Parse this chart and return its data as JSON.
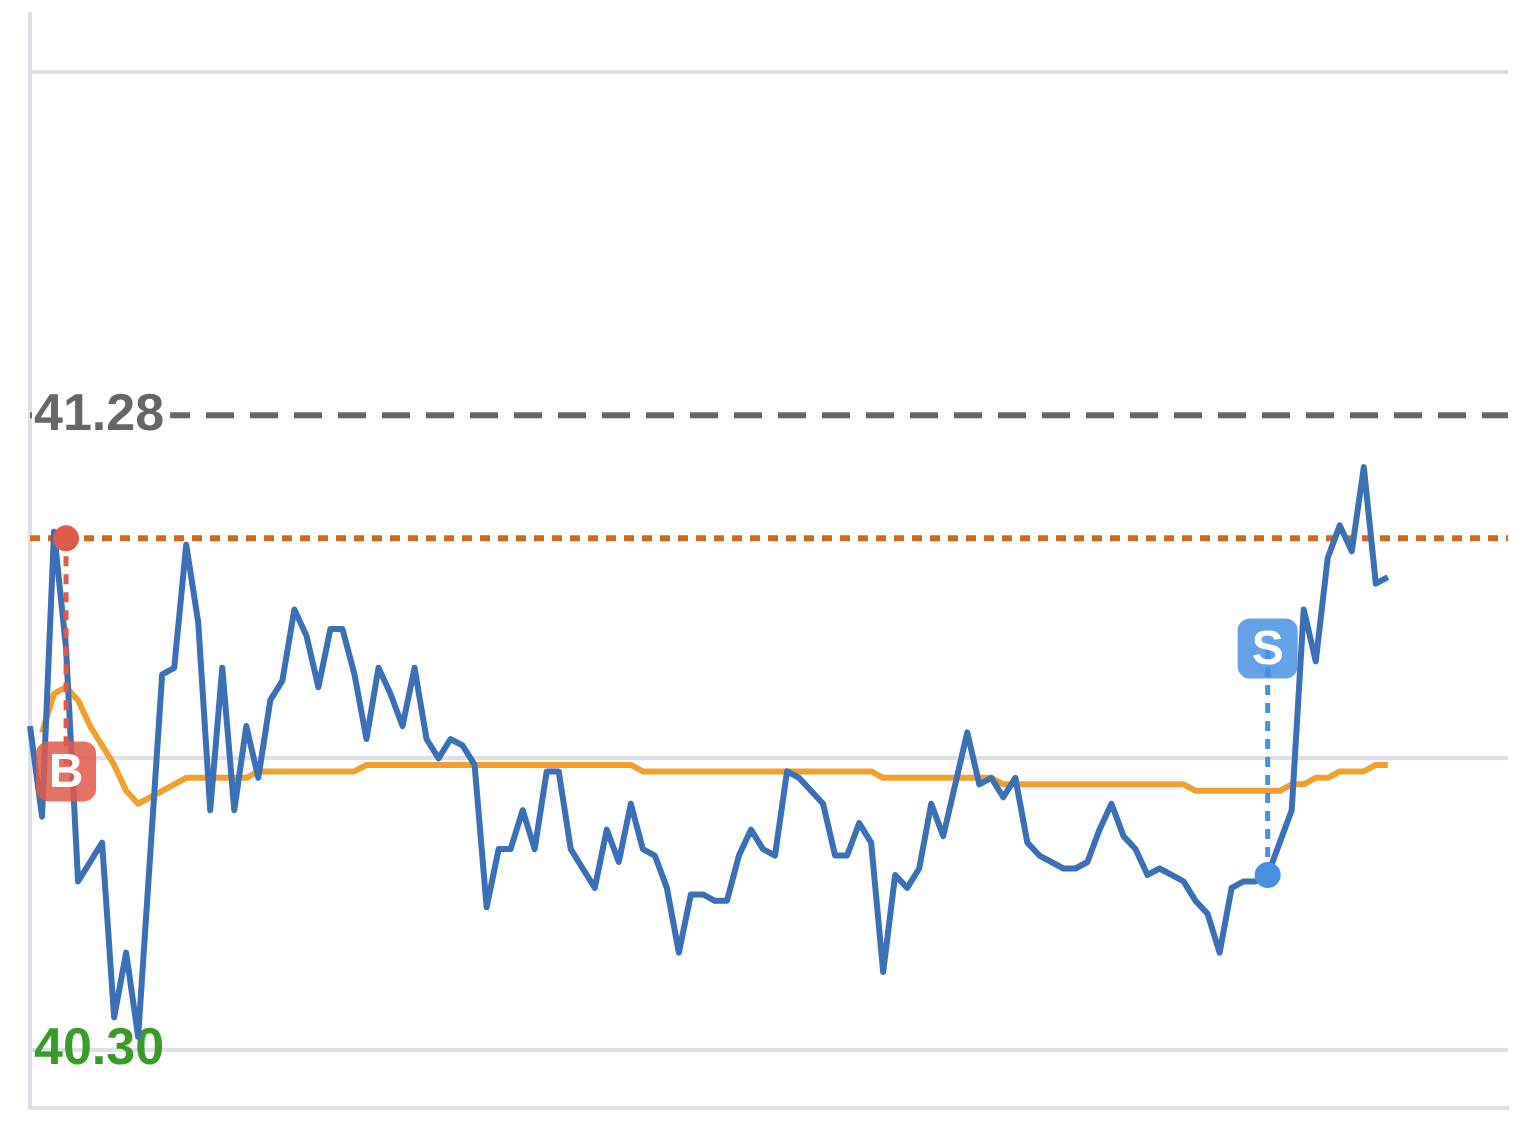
{
  "chart_data": {
    "type": "line",
    "categories": [
      null,
      null,
      null,
      null,
      null,
      null,
      null,
      null,
      null,
      null,
      null,
      null,
      null,
      null,
      null,
      null,
      null,
      null,
      null,
      null,
      null,
      null,
      null,
      null,
      null,
      null,
      null,
      null,
      null,
      null,
      null,
      null,
      null,
      null,
      null,
      null,
      null,
      null,
      null,
      null,
      null,
      null,
      null,
      null,
      null,
      null,
      null,
      null,
      null,
      null,
      null,
      null,
      null,
      null,
      null,
      null,
      null,
      null,
      null,
      null,
      null,
      null,
      null,
      null,
      null,
      null,
      null,
      null,
      null,
      null,
      null,
      null,
      null,
      null,
      null,
      null,
      null,
      null,
      null,
      null,
      null,
      null,
      null,
      null,
      null,
      null,
      null,
      null,
      null,
      null,
      null,
      null,
      null,
      null,
      null,
      null,
      null,
      null,
      null,
      null,
      null,
      null,
      null,
      null,
      null,
      null,
      null,
      null,
      null,
      null,
      null,
      null,
      null,
      null,
      null,
      null,
      null,
      null,
      null,
      null,
      null,
      null,
      null,
      null
    ],
    "ylim": [
      40.21,
      41.9
    ],
    "yticks": [
      {
        "value": 40.3,
        "label": "40.30"
      },
      {
        "value": 40.75,
        "label": null
      },
      {
        "value": 41.28,
        "label": "41.28"
      },
      {
        "value": 41.81,
        "label": null
      }
    ],
    "grid": true,
    "tick_labels": "y",
    "marker": "none",
    "series": [
      {
        "color": "#3b6fb6",
        "values": [
          40.8,
          40.66,
          41.1,
          40.92,
          40.56,
          40.59,
          40.62,
          40.35,
          40.45,
          40.32,
          40.6,
          40.88,
          40.89,
          41.08,
          40.96,
          40.67,
          40.89,
          40.67,
          40.8,
          40.72,
          40.84,
          40.87,
          40.98,
          40.94,
          40.86,
          40.95,
          40.95,
          40.88,
          40.78,
          40.89,
          40.85,
          40.8,
          40.89,
          40.78,
          40.75,
          40.78,
          40.77,
          40.74,
          40.52,
          40.61,
          40.61,
          40.67,
          40.61,
          40.73,
          40.73,
          40.61,
          40.58,
          40.55,
          40.64,
          40.59,
          40.68,
          40.61,
          40.6,
          40.55,
          40.45,
          40.54,
          40.54,
          40.53,
          40.53,
          40.6,
          40.64,
          40.61,
          40.6,
          40.73,
          40.72,
          40.7,
          40.68,
          40.6,
          40.6,
          40.65,
          40.62,
          40.42,
          40.57,
          40.55,
          40.58,
          40.68,
          40.63,
          40.71,
          40.79,
          40.71,
          40.72,
          40.69,
          40.72,
          40.62,
          40.6,
          40.59,
          40.58,
          40.58,
          40.59,
          40.64,
          40.68,
          40.63,
          40.61,
          40.57,
          40.58,
          40.57,
          40.56,
          40.53,
          40.51,
          40.45,
          40.55,
          40.56,
          40.56,
          40.57,
          40.62,
          40.67,
          40.98,
          40.9,
          41.06,
          41.11,
          41.07,
          41.2,
          41.02,
          41.03,
          null,
          null,
          null,
          null,
          null,
          null,
          null,
          null,
          null,
          null
        ]
      },
      {
        "color": "#f0a030",
        "values": [
          null,
          40.79,
          40.85,
          40.86,
          40.84,
          40.8,
          40.77,
          40.74,
          40.7,
          40.68,
          40.69,
          40.7,
          40.71,
          40.72,
          40.72,
          40.72,
          40.72,
          40.72,
          40.72,
          40.73,
          40.73,
          40.73,
          40.73,
          40.73,
          40.73,
          40.73,
          40.73,
          40.73,
          40.74,
          40.74,
          40.74,
          40.74,
          40.74,
          40.74,
          40.74,
          40.74,
          40.74,
          40.74,
          40.74,
          40.74,
          40.74,
          40.74,
          40.74,
          40.74,
          40.74,
          40.74,
          40.74,
          40.74,
          40.74,
          40.74,
          40.74,
          40.73,
          40.73,
          40.73,
          40.73,
          40.73,
          40.73,
          40.73,
          40.73,
          40.73,
          40.73,
          40.73,
          40.73,
          40.73,
          40.73,
          40.73,
          40.73,
          40.73,
          40.73,
          40.73,
          40.73,
          40.72,
          40.72,
          40.72,
          40.72,
          40.72,
          40.72,
          40.72,
          40.72,
          40.72,
          40.72,
          40.71,
          40.71,
          40.71,
          40.71,
          40.71,
          40.71,
          40.71,
          40.71,
          40.71,
          40.71,
          40.71,
          40.71,
          40.71,
          40.71,
          40.71,
          40.71,
          40.7,
          40.7,
          40.7,
          40.7,
          40.7,
          40.7,
          40.7,
          40.7,
          40.71,
          40.71,
          40.72,
          40.72,
          40.73,
          40.73,
          40.73,
          40.74,
          40.74,
          null,
          null,
          null,
          null,
          null,
          null,
          null,
          null,
          null,
          null
        ]
      },
      {
        "type": "scatter",
        "marker": "circle",
        "colors": [
          null,
          null,
          null,
          "#e05a4a",
          null,
          null,
          null,
          null,
          null,
          null,
          null,
          null,
          null,
          null,
          null,
          null,
          null,
          null,
          null,
          null,
          null,
          null,
          null,
          null,
          null,
          null,
          null,
          null,
          null,
          null,
          null,
          null,
          null,
          null,
          null,
          null,
          null,
          null,
          null,
          null,
          null,
          null,
          null,
          null,
          null,
          null,
          null,
          null,
          null,
          null,
          null,
          null,
          null,
          null,
          null,
          null,
          null,
          null,
          null,
          null,
          null,
          null,
          null,
          null,
          null,
          null,
          null,
          null,
          null,
          null,
          null,
          null,
          null,
          null,
          null,
          null,
          null,
          null,
          null,
          null,
          null,
          null,
          null,
          null,
          null,
          null,
          null,
          null,
          null,
          null,
          null,
          null,
          null,
          null,
          null,
          null,
          null,
          null,
          null,
          null,
          null,
          null,
          null,
          "#4a90e2",
          null,
          null,
          null,
          null,
          null,
          null,
          null,
          null,
          null,
          null,
          null,
          null,
          null,
          null,
          null,
          null,
          null,
          null,
          null,
          null
        ],
        "values": [
          null,
          null,
          null,
          41.09,
          null,
          null,
          null,
          null,
          null,
          null,
          null,
          null,
          null,
          null,
          null,
          null,
          null,
          null,
          null,
          null,
          null,
          null,
          null,
          null,
          null,
          null,
          null,
          null,
          null,
          null,
          null,
          null,
          null,
          null,
          null,
          null,
          null,
          null,
          null,
          null,
          null,
          null,
          null,
          null,
          null,
          null,
          null,
          null,
          null,
          null,
          null,
          null,
          null,
          null,
          null,
          null,
          null,
          null,
          null,
          null,
          null,
          null,
          null,
          null,
          null,
          null,
          null,
          null,
          null,
          null,
          null,
          null,
          null,
          null,
          null,
          null,
          null,
          null,
          null,
          null,
          null,
          null,
          null,
          null,
          null,
          null,
          null,
          null,
          null,
          null,
          null,
          null,
          null,
          null,
          null,
          null,
          null,
          null,
          null,
          null,
          null,
          null,
          null,
          40.57,
          null,
          null,
          null,
          null,
          null,
          null,
          null,
          null,
          null,
          null,
          null,
          null,
          null,
          null,
          null,
          null,
          null,
          null,
          null,
          null
        ]
      }
    ],
    "ref_lines": [
      {
        "axis": "y",
        "value": 41.28,
        "color": "#666666",
        "line_style": "dashed"
      },
      {
        "axis": "y",
        "value": 41.09,
        "color": "#d2691e",
        "line_style": "dotted"
      }
    ],
    "annotations": [
      {
        "text": "B",
        "y": 40.73
      },
      {
        "text": "S",
        "y": 40.92
      }
    ]
  }
}
